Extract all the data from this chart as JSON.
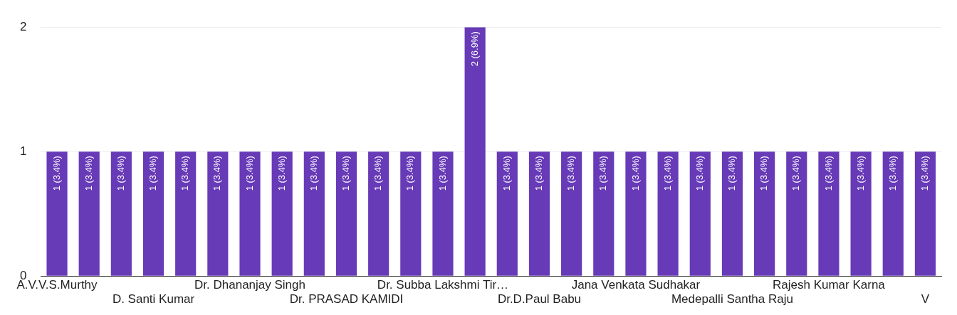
{
  "chart_data": {
    "type": "bar",
    "categories": [
      "A.V.V.S.Murthy",
      null,
      null,
      "D. Santi Kumar",
      null,
      null,
      "Dr. Dhananjay Singh",
      null,
      null,
      "Dr. PRASAD KAMIDI",
      null,
      null,
      "Dr. Subba Lakshmi Tir…",
      null,
      null,
      "Dr.D.Paul Babu",
      null,
      null,
      "Jana Venkata Sudhakar",
      null,
      null,
      "Medepalli Santha Raju",
      null,
      null,
      "Rajesh Kumar Karna",
      null,
      null,
      "V"
    ],
    "values": [
      1,
      1,
      1,
      1,
      1,
      1,
      1,
      1,
      1,
      1,
      1,
      1,
      1,
      2,
      1,
      1,
      1,
      1,
      1,
      1,
      1,
      1,
      1,
      1,
      1,
      1,
      1,
      1
    ],
    "value_labels": [
      "1 (3.4%)",
      "1 (3.4%)",
      "1 (3.4%)",
      "1 (3.4%)",
      "1 (3.4%)",
      "1 (3.4%)",
      "1 (3.4%)",
      "1 (3.4%)",
      "1 (3.4%)",
      "1 (3.4%)",
      "1 (3.4%)",
      "1 (3.4%)",
      "1 (3.4%)",
      "2 (6.9%)",
      "1 (3.4%)",
      "1 (3.4%)",
      "1 (3.4%)",
      "1 (3.4%)",
      "1 (3.4%)",
      "1 (3.4%)",
      "1 (3.4%)",
      "1 (3.4%)",
      "1 (3.4%)",
      "1 (3.4%)",
      "1 (3.4%)",
      "1 (3.4%)",
      "1 (3.4%)",
      "1 (3.4%)"
    ],
    "color": "#673ab7",
    "ylim": [
      0,
      2
    ],
    "yticks": [
      0,
      1,
      2
    ],
    "grid": "y",
    "legend": false
  }
}
